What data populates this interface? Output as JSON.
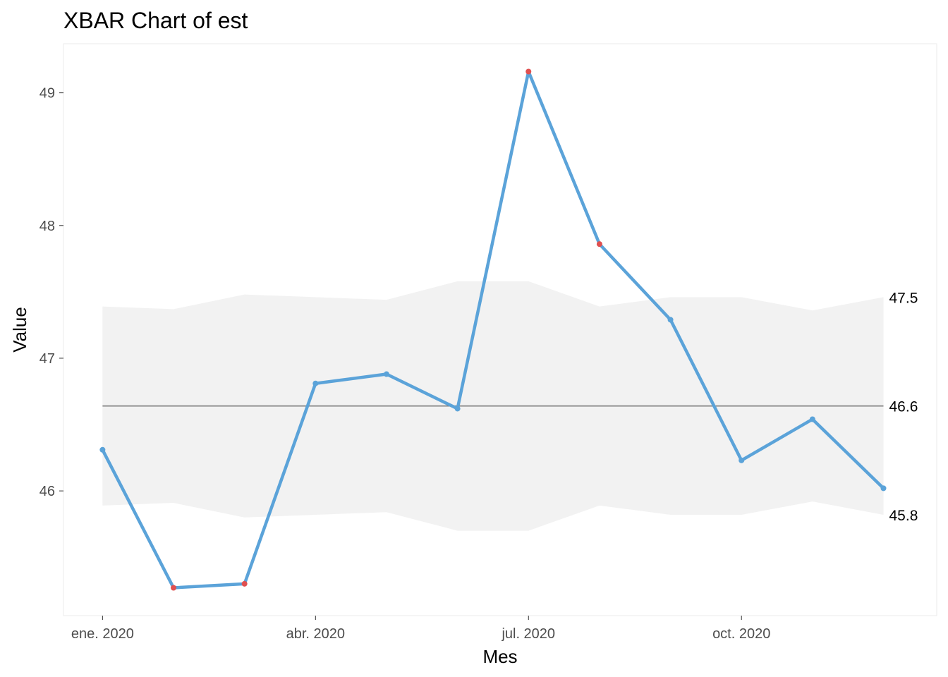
{
  "chart_data": {
    "type": "line",
    "title": "XBAR Chart of est",
    "xlabel": "Mes",
    "ylabel": "Value",
    "x_tick_labels": [
      "ene. 2020",
      "abr. 2020",
      "jul. 2020",
      "oct. 2020"
    ],
    "x_tick_months": [
      0,
      3,
      6,
      9
    ],
    "y_ticks": [
      46,
      47,
      48,
      49
    ],
    "ylim": [
      45.06,
      49.37
    ],
    "xlim_months": [
      -0.55,
      11.75
    ],
    "x": [
      "2020-01",
      "2020-02",
      "2020-03",
      "2020-04",
      "2020-05",
      "2020-06",
      "2020-07",
      "2020-08",
      "2020-09",
      "2020-10",
      "2020-11",
      "2020-12"
    ],
    "series": [
      {
        "values": [
          46.31,
          45.27,
          45.3,
          46.81,
          46.88,
          46.62,
          49.16,
          47.86,
          47.29,
          46.23,
          46.54,
          46.02
        ],
        "out_of_control": [
          false,
          true,
          true,
          false,
          false,
          false,
          true,
          true,
          false,
          false,
          false,
          false
        ],
        "color": "#5ba3d9",
        "out_of_control_color": "#e05050"
      }
    ],
    "center_line": 46.64,
    "upper_limits": [
      47.39,
      47.37,
      47.48,
      47.46,
      47.44,
      47.58,
      47.58,
      47.39,
      47.46,
      47.46,
      47.36,
      47.46
    ],
    "lower_limits": [
      45.89,
      45.91,
      45.8,
      45.82,
      45.84,
      45.7,
      45.7,
      45.89,
      45.82,
      45.82,
      45.92,
      45.82
    ],
    "limit_labels": [
      "47.5",
      "46.6",
      "45.8"
    ],
    "limit_label_values": [
      47.46,
      46.64,
      45.82
    ],
    "band_color": "#f2f2f2",
    "center_line_color": "#7f7f7f",
    "grid": false
  }
}
